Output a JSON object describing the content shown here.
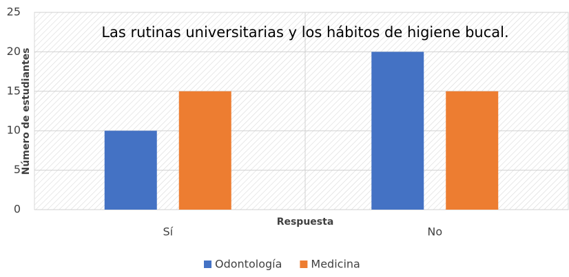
{
  "chart_data": {
    "type": "bar",
    "title": "Las rutinas universitarias y los hábitos de higiene bucal.",
    "x_label": "Respuesta",
    "y_label": "Número de estudiantes",
    "categories": [
      "Sí",
      "No"
    ],
    "series": [
      {
        "name": "Odontología",
        "color": "#4472c4",
        "values": [
          10,
          20
        ]
      },
      {
        "name": "Medicina",
        "color": "#ed7d31",
        "values": [
          15,
          15
        ]
      }
    ],
    "ylim": [
      0,
      25
    ],
    "yticks": [
      0,
      5,
      10,
      15,
      20,
      25
    ],
    "grid": true,
    "legend": "bottom"
  }
}
